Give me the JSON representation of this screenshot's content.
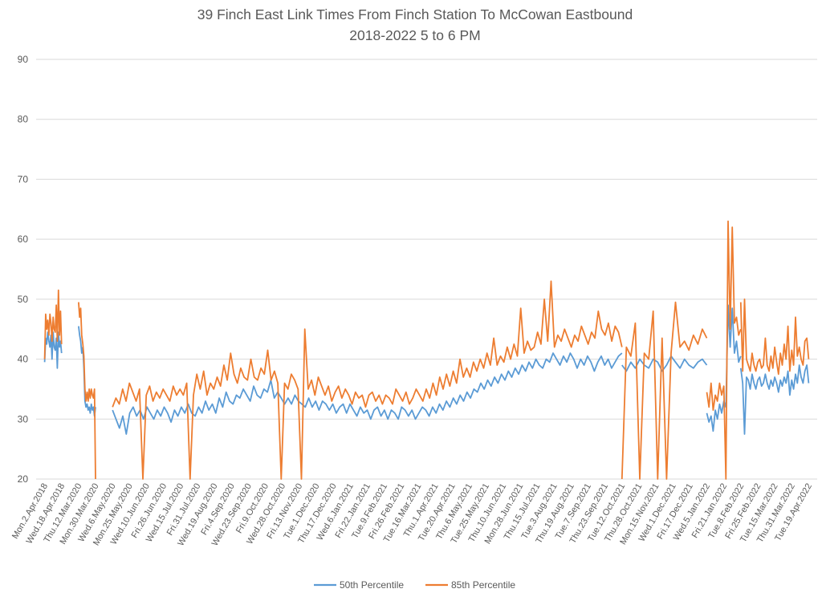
{
  "chart_data": {
    "type": "line",
    "title": "39 Finch East Link Times From Finch Station To McCowan Eastbound",
    "subtitle": "2018-2022 5 to 6 PM",
    "xlabel": "",
    "ylabel": "",
    "ylim": [
      20,
      90
    ],
    "yticks": [
      20,
      30,
      40,
      50,
      60,
      70,
      80,
      90
    ],
    "grid": true,
    "legend_position": "bottom",
    "x_tick_labels": [
      "Mon.2.Apr.2018",
      "Wed.18.Apr.2018",
      "Thu.12.Mar.2020",
      "Mon.30.Mar.2020",
      "Wed.6.May.2020",
      "Mon.25.May.2020",
      "Wed.10.Jun.2020",
      "Fri.26.Jun.2020",
      "Wed.15.Jul.2020",
      "Fri.31.Jul.2020",
      "Wed.19.Aug.2020",
      "Fri.4.Sep.2020",
      "Wed.23.Sep.2020",
      "Fri.9.Oct.2020",
      "Wed.28.Oct.2020",
      "Fri.13.Nov.2020",
      "Tue.1.Dec.2020",
      "Thu.17.Dec.2020",
      "Wed.6.Jan.2021",
      "Fri.22.Jan.2021",
      "Tue.9.Feb.2021",
      "Fri.26.Feb.2021",
      "Tue.16.Mar.2021",
      "Thu.1.Apr.2021",
      "Tue.20.Apr.2021",
      "Thu.6.May.2021",
      "Tue.25.May.2021",
      "Thu.10.Jun.2021",
      "Mon.28.Jun.2021",
      "Thu.15.Jul.2021",
      "Tue.3.Aug.2021",
      "Thu.19.Aug.2021",
      "Tue.7.Sep.2021",
      "Thu.23.Sep.2021",
      "Tue.12.Oct.2021",
      "Thu.28.Oct.2021",
      "Mon.15.Nov.2021",
      "Wed.1.Dec.2021",
      "Fri.17.Dec.2021",
      "Wed.5.Jan.2022",
      "Fri.21.Jan.2022",
      "Tue.8.Feb.2022",
      "Fri.25.Feb.2022",
      "Tue.15.Mar.2022",
      "Thu.31.Mar.2022",
      "Tue.19.Apr.2022"
    ],
    "series": [
      {
        "name": "50th Percentile",
        "color": "#5B9BD5",
        "segments": [
          {
            "start": "Mon.2.Apr.2018",
            "end": "Wed.18.Apr.2018",
            "values": [
              39.5,
              43.5,
              42.5,
              44.5,
              43.0,
              42.0,
              44.0,
              40.0,
              44.5,
              42.0,
              41.5,
              43.5,
              38.5,
              44.5,
              42.0,
              43.0,
              41.0
            ]
          },
          {
            "start": "Thu.12.Mar.2020",
            "end": "Mon.30.Mar.2020",
            "values": [
              45.5,
              44.0,
              43.0,
              41.0,
              42.0,
              38.5,
              33.0,
              32.0,
              32.5,
              31.5,
              32.0,
              31.0,
              32.5,
              31.5,
              32.0,
              30.5,
              32.0
            ]
          },
          {
            "start": "Wed.6.May.2020",
            "end": "Tue.12.Oct.2021",
            "values": [
              31.5,
              30.0,
              28.5,
              30.5,
              27.5,
              31.0,
              32.0,
              30.5,
              31.5,
              30.0,
              32.0,
              31.0,
              30.0,
              31.5,
              30.5,
              32.0,
              31.0,
              29.5,
              31.5,
              30.5,
              32.0,
              31.0,
              32.5,
              31.0,
              30.5,
              32.0,
              31.0,
              33.0,
              31.5,
              32.5,
              31.0,
              33.5,
              32.0,
              34.5,
              33.0,
              32.5,
              34.0,
              33.5,
              35.0,
              34.0,
              33.0,
              35.5,
              34.0,
              33.5,
              35.0,
              34.5,
              36.5,
              33.5,
              34.5,
              33.5,
              32.5,
              33.5,
              32.5,
              34.0,
              33.0,
              32.5,
              32.0,
              33.5,
              32.0,
              33.0,
              31.5,
              33.0,
              32.5,
              31.5,
              32.5,
              31.0,
              32.0,
              32.5,
              31.0,
              32.5,
              31.5,
              30.5,
              32.0,
              31.0,
              31.5,
              30.0,
              31.5,
              32.0,
              30.5,
              31.5,
              30.0,
              31.5,
              31.0,
              30.0,
              32.0,
              31.5,
              30.5,
              31.5,
              30.0,
              31.0,
              32.0,
              31.5,
              30.5,
              32.0,
              31.0,
              32.5,
              31.5,
              33.0,
              32.0,
              33.5,
              32.5,
              34.0,
              33.0,
              34.5,
              33.5,
              35.0,
              34.5,
              36.0,
              35.0,
              36.5,
              35.5,
              37.0,
              36.0,
              37.5,
              36.5,
              38.0,
              37.0,
              38.5,
              37.5,
              39.0,
              38.0,
              39.5,
              38.5,
              40.0,
              39.0,
              38.5,
              40.0,
              39.5,
              41.0,
              40.0,
              39.0,
              40.5,
              39.5,
              41.0,
              40.0,
              38.5,
              40.0,
              39.0,
              40.5,
              39.5,
              38.0,
              39.5,
              40.5,
              39.0,
              40.0,
              38.5,
              39.5,
              40.5,
              41.0
            ]
          },
          {
            "start": "Tue.12.Oct.2021",
            "end": "Wed.5.Jan.2022",
            "values": [
              39.0,
              38.0,
              39.5,
              38.5,
              40.0,
              39.0,
              38.5,
              40.0,
              39.5,
              38.0,
              39.0,
              40.5,
              39.5,
              38.5,
              40.0,
              39.0,
              38.5,
              39.5,
              40.0,
              39.0
            ]
          },
          {
            "start": "Wed.5.Jan.2022",
            "end": "Tue.8.Feb.2022",
            "values": [
              31.0,
              29.5,
              30.5,
              28.0,
              31.5,
              30.0,
              32.5,
              31.0,
              33.0,
              32.0,
              49.0,
              42.0,
              48.5,
              41.0,
              43.0,
              39.5,
              40.5
            ]
          },
          {
            "start": "Tue.8.Feb.2022",
            "end": "Tue.19.Apr.2022",
            "values": [
              38.5,
              36.0,
              27.5,
              37.0,
              36.5,
              35.0,
              37.5,
              36.0,
              35.0,
              36.5,
              37.0,
              35.5,
              36.0,
              37.5,
              36.0,
              35.0,
              36.5,
              35.5,
              37.0,
              36.0,
              34.5,
              36.5,
              35.5,
              37.0,
              36.0,
              38.0,
              34.0,
              36.5,
              35.0,
              37.5,
              36.0,
              39.0,
              37.0,
              36.0,
              38.0,
              39.0,
              36.0
            ]
          }
        ]
      },
      {
        "name": "85th Percentile",
        "color": "#ED7D31",
        "segments": [
          {
            "start": "Mon.2.Apr.2018",
            "end": "Wed.18.Apr.2018",
            "values": [
              40.0,
              47.5,
              45.0,
              46.5,
              44.0,
              47.5,
              46.0,
              43.0,
              47.0,
              45.0,
              44.5,
              49.0,
              43.0,
              51.5,
              44.0,
              48.0,
              42.5
            ]
          },
          {
            "start": "Thu.12.Mar.2020",
            "end": "Mon.30.Mar.2020",
            "values": [
              49.5,
              47.0,
              48.5,
              44.0,
              42.5,
              40.5,
              35.0,
              33.0,
              34.5,
              33.0,
              35.0,
              33.5,
              35.0,
              34.0,
              33.5,
              35.0,
              20.0
            ]
          },
          {
            "start": "Wed.6.May.2020",
            "end": "Tue.12.Oct.2021",
            "values": [
              32.0,
              33.5,
              32.5,
              35.0,
              33.0,
              36.0,
              34.5,
              33.0,
              35.0,
              20.0,
              34.0,
              35.5,
              33.0,
              34.5,
              33.5,
              35.0,
              34.0,
              33.0,
              35.5,
              34.0,
              35.0,
              34.0,
              36.0,
              20.0,
              34.0,
              37.5,
              35.0,
              38.0,
              34.0,
              36.0,
              35.0,
              37.0,
              35.5,
              39.0,
              36.5,
              41.0,
              37.5,
              36.0,
              38.5,
              37.0,
              36.5,
              40.0,
              37.0,
              36.5,
              38.5,
              37.5,
              41.5,
              36.5,
              38.0,
              36.0,
              20.0,
              36.0,
              35.0,
              37.5,
              36.5,
              35.0,
              20.0,
              45.0,
              35.0,
              36.5,
              34.0,
              37.0,
              35.5,
              34.0,
              35.5,
              33.0,
              34.5,
              35.5,
              33.5,
              35.0,
              34.0,
              32.5,
              34.5,
              33.5,
              34.0,
              32.0,
              34.0,
              34.5,
              33.0,
              34.0,
              32.5,
              34.0,
              33.5,
              32.5,
              35.0,
              34.0,
              33.0,
              34.5,
              32.5,
              33.5,
              35.0,
              34.0,
              33.0,
              35.0,
              33.5,
              36.0,
              34.0,
              37.0,
              35.0,
              37.5,
              35.5,
              38.0,
              36.0,
              40.0,
              37.0,
              38.5,
              37.0,
              39.5,
              38.0,
              40.0,
              38.5,
              41.0,
              39.0,
              43.5,
              39.0,
              40.5,
              39.5,
              42.0,
              40.0,
              42.5,
              40.5,
              48.5,
              41.0,
              43.0,
              41.5,
              42.0,
              44.5,
              42.5,
              50.0,
              43.0,
              53.0,
              42.0,
              44.0,
              43.0,
              45.0,
              43.5,
              42.0,
              44.0,
              43.0,
              45.5,
              44.0,
              42.5,
              44.5,
              43.5,
              48.0,
              45.0,
              44.0,
              46.0,
              43.0,
              45.5,
              44.5,
              42.0
            ]
          },
          {
            "start": "Tue.12.Oct.2021",
            "end": "Wed.5.Jan.2022",
            "values": [
              20.0,
              42.0,
              40.5,
              46.0,
              20.0,
              41.0,
              40.0,
              48.0,
              20.0,
              43.5,
              20.0,
              41.0,
              49.5,
              42.0,
              43.0,
              41.5,
              44.0,
              42.5,
              45.0,
              43.5
            ]
          },
          {
            "start": "Wed.5.Jan.2022",
            "end": "Tue.8.Feb.2022",
            "values": [
              34.5,
              32.0,
              36.0,
              31.5,
              34.0,
              33.0,
              36.0,
              34.0,
              35.5,
              20.0,
              63.0,
              45.0,
              62.0,
              46.0,
              47.0,
              44.0,
              45.0
            ]
          },
          {
            "start": "Tue.8.Feb.2022",
            "end": "Tue.19.Apr.2022",
            "values": [
              49.5,
              38.0,
              50.0,
              40.0,
              39.0,
              38.0,
              41.0,
              39.0,
              38.0,
              39.5,
              40.0,
              38.5,
              39.0,
              43.5,
              39.0,
              38.0,
              40.5,
              38.5,
              42.0,
              39.5,
              37.5,
              41.0,
              39.0,
              42.5,
              40.0,
              45.5,
              38.0,
              41.5,
              39.0,
              47.0,
              40.5,
              42.0,
              40.0,
              39.0,
              43.0,
              43.5,
              40.0
            ]
          }
        ]
      }
    ]
  }
}
